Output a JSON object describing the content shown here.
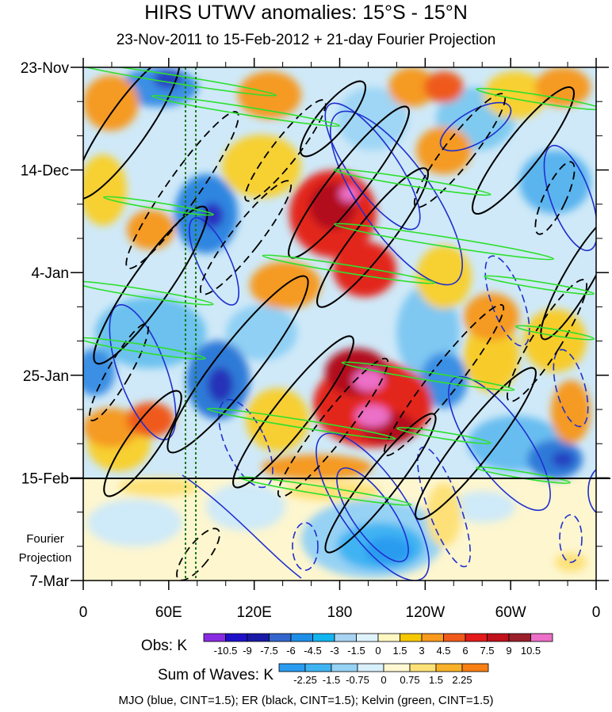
{
  "chart_data": {
    "type": "heatmap",
    "title": "HIRS UTWV anomalies: 15°S - 15°N",
    "subtitle": "23-Nov-2011 to 15-Feb-2012 + 21-day Fourier Projection",
    "xlabel": "",
    "ylabel": "",
    "x_ticks": [
      "0",
      "60E",
      "120E",
      "180",
      "120W",
      "60W",
      "0"
    ],
    "y_ticks": [
      "23-Nov",
      "14-Dec",
      "4-Jan",
      "25-Jan",
      "15-Feb",
      "7-Mar"
    ],
    "projection_label": [
      "Fourier",
      "Projection"
    ],
    "obs_legend": {
      "label": "Obs: K",
      "levels": [
        "-10.5",
        "-9",
        "-7.5",
        "-6",
        "-4.5",
        "-3",
        "-1.5",
        "0",
        "1.5",
        "3",
        "4.5",
        "6",
        "7.5",
        "9",
        "10.5"
      ],
      "colors": [
        "#8a2be2",
        "#1f10c8",
        "#1a1aa6",
        "#3366cc",
        "#1e8fe8",
        "#12b5f0",
        "#a9d3f2",
        "#dff3ff",
        "#fff7c2",
        "#f6c800",
        "#f99a1e",
        "#ef5a1a",
        "#e31a1a",
        "#c0101b",
        "#9b1f2a",
        "#ec6fc8"
      ]
    },
    "waves_legend": {
      "label": "Sum of Waves: K",
      "levels": [
        "-2.25",
        "-1.5",
        "-0.75",
        "0",
        "0.75",
        "1.5",
        "2.25"
      ],
      "colors": [
        "#2a9cf0",
        "#3fb4f2",
        "#96d2f4",
        "#d8f0fc",
        "#fff8d2",
        "#fde178",
        "#f9b12a",
        "#f77f14"
      ]
    },
    "footer": "MJO (blue, CINT=1.5); ER (black, CINT=1.5); Kelvin (green, CINT=1.5)",
    "series_colors": {
      "MJO": "#1f2fd0",
      "ER": "#000000",
      "Kelvin": "#2ee02e",
      "reference_lines": "#1a7a1a"
    }
  }
}
